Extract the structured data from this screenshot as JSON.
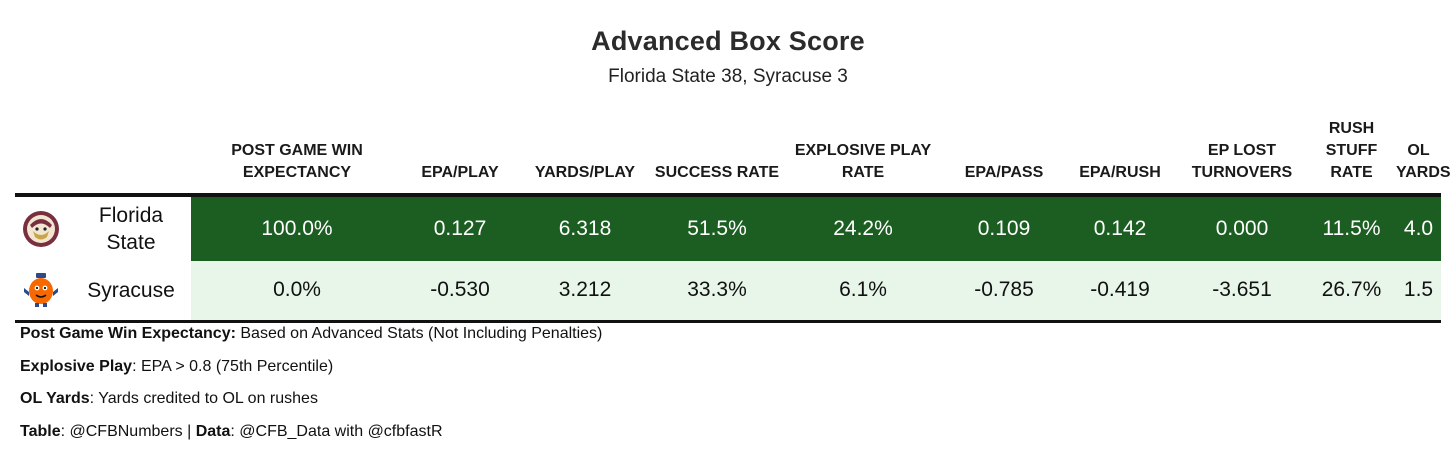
{
  "chart_data": {
    "type": "table",
    "title": "Advanced Box Score",
    "subtitle": "Florida State 38, Syracuse 3",
    "columns": [
      "POST GAME WIN EXPECTANCY",
      "EPA/PLAY",
      "YARDS/PLAY",
      "SUCCESS RATE",
      "EXPLOSIVE PLAY RATE",
      "EPA/PASS",
      "EPA/RUSH",
      "EP LOST TURNOVERS",
      "RUSH STUFF RATE",
      "OL YARDS"
    ],
    "rows": [
      {
        "team": "Florida State",
        "logo": "florida-state-seminole-logo",
        "values": [
          "100.0%",
          "0.127",
          "6.318",
          "51.5%",
          "24.2%",
          "0.109",
          "0.142",
          "0.000",
          "11.5%",
          "4.0"
        ]
      },
      {
        "team": "Syracuse",
        "logo": "syracuse-otto-orange-logo",
        "values": [
          "0.0%",
          "-0.530",
          "3.212",
          "33.3%",
          "6.1%",
          "-0.785",
          "-0.419",
          "-3.651",
          "26.7%",
          "1.5"
        ]
      }
    ],
    "colors": {
      "winner_row": "#1c5e21",
      "loser_row": "#e8f5e9"
    }
  },
  "notes": [
    {
      "label": "Post Game Win Expectancy:",
      "text": " Based on Advanced Stats (Not Including Penalties)"
    },
    {
      "label": "Explosive Play",
      "text": ": EPA > 0.8 (75th Percentile)"
    },
    {
      "label": "OL Yards",
      "text": ": Yards credited to OL on rushes"
    }
  ],
  "credit": {
    "table_label": "Table",
    "table_handle": ": @CFBNumbers | ",
    "data_label": "Data",
    "data_text": ": @CFB_Data with @cfbfastR"
  }
}
